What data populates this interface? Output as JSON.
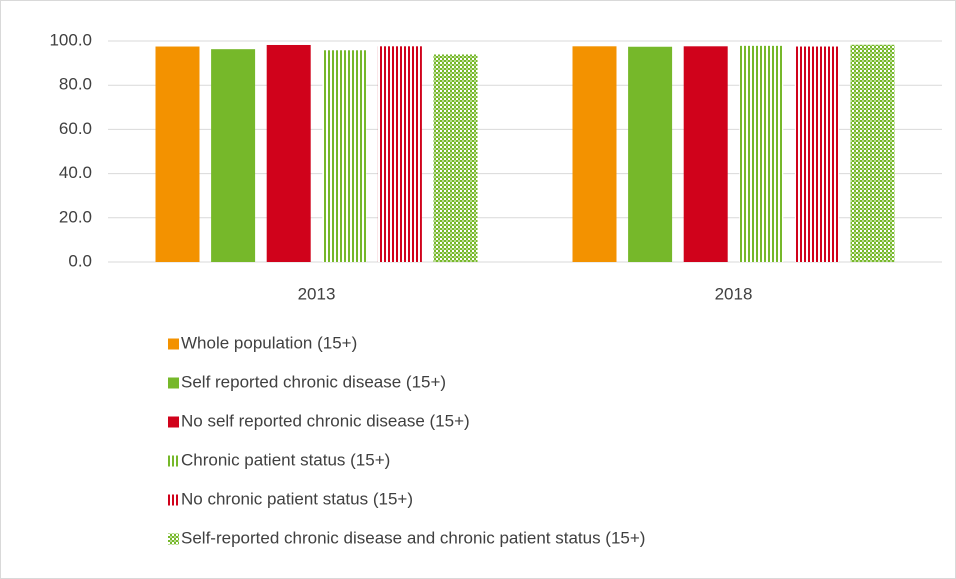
{
  "chart_data": {
    "type": "bar",
    "categories": [
      "2013",
      "2018"
    ],
    "series": [
      {
        "name": "Whole population (15+)",
        "color": "#f39200",
        "pattern": "solid",
        "values": [
          97.5,
          97.6
        ]
      },
      {
        "name": "Self reported chronic disease (15+)",
        "color": "#76b82a",
        "pattern": "solid",
        "values": [
          96.3,
          97.4
        ]
      },
      {
        "name": "No self reported chronic disease (15+)",
        "color": "#d0021b",
        "pattern": "solid",
        "values": [
          98.2,
          97.6
        ]
      },
      {
        "name": "Chronic patient status (15+)",
        "color": "#76b82a",
        "pattern": "vertical-stripes",
        "values": [
          95.8,
          97.8
        ]
      },
      {
        "name": "No chronic patient status (15+)",
        "color": "#d0021b",
        "pattern": "vertical-stripes",
        "values": [
          97.6,
          97.5
        ]
      },
      {
        "name": "Self-reported chronic disease and chronic patient status (15+)",
        "color": "#76b82a",
        "pattern": "checker",
        "values": [
          93.9,
          98.3
        ]
      }
    ],
    "ylim": [
      0,
      100
    ],
    "yticks": [
      {
        "value": 0,
        "label": "0.0"
      },
      {
        "value": 20,
        "label": "20.0"
      },
      {
        "value": 40,
        "label": "40.0"
      },
      {
        "value": 60,
        "label": "60.0"
      },
      {
        "value": 80,
        "label": "80.0"
      },
      {
        "value": 100,
        "label": "100.0"
      }
    ],
    "grid": true,
    "legend": "bottom"
  }
}
